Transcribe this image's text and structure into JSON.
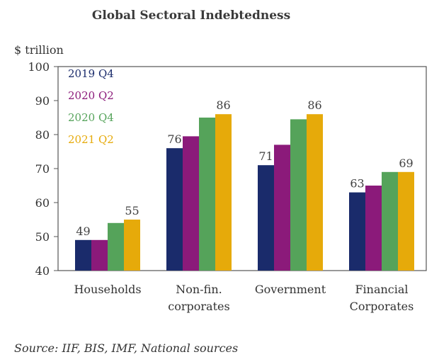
{
  "chart_data": {
    "type": "bar",
    "title": "Global Sectoral Indebtedness",
    "ylabel": "$ trillion",
    "xlabel": "",
    "ylim": [
      40,
      100
    ],
    "yticks": [
      40,
      50,
      60,
      70,
      80,
      90,
      100
    ],
    "categories": [
      "Households",
      "Non-fin.\ncorporates",
      "Government",
      "Financial\nCorporates"
    ],
    "series": [
      {
        "name": "2019 Q4",
        "color": "#1a2b6b",
        "values": [
          49,
          76,
          71,
          63
        ]
      },
      {
        "name": "2020 Q2",
        "color": "#8b1a7a",
        "values": [
          49,
          79.5,
          77,
          65
        ]
      },
      {
        "name": "2020 Q4",
        "color": "#55a35a",
        "values": [
          54,
          85,
          84.5,
          69
        ]
      },
      {
        "name": "2021 Q2",
        "color": "#e6aa0a",
        "values": [
          55,
          86,
          86,
          69
        ]
      }
    ],
    "data_labels": [
      {
        "category_index": 0,
        "series_index": 0,
        "text": "49"
      },
      {
        "category_index": 0,
        "series_index": 3,
        "text": "55"
      },
      {
        "category_index": 1,
        "series_index": 0,
        "text": "76"
      },
      {
        "category_index": 1,
        "series_index": 3,
        "text": "86"
      },
      {
        "category_index": 2,
        "series_index": 0,
        "text": "71"
      },
      {
        "category_index": 2,
        "series_index": 3,
        "text": "86"
      },
      {
        "category_index": 3,
        "series_index": 0,
        "text": "63"
      },
      {
        "category_index": 3,
        "series_index": 3,
        "text": "69"
      }
    ],
    "legend_placement": "top-left",
    "grid": false,
    "source": "Source: IIF, BIS, IMF, National sources"
  }
}
